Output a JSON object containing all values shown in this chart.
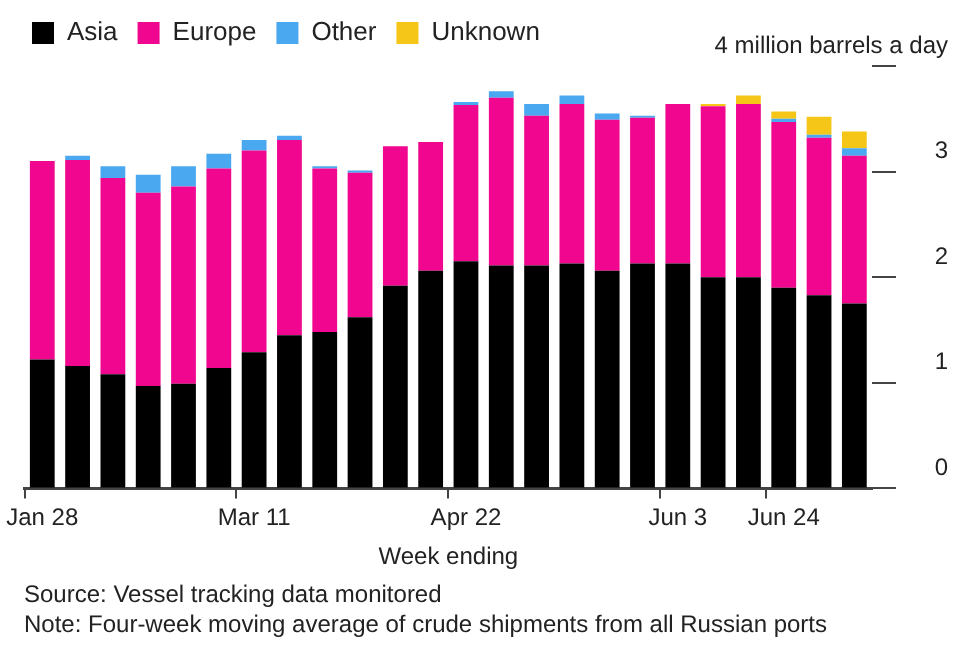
{
  "chart_data": {
    "type": "bar",
    "stacked": true,
    "xlabel": "Week ending",
    "legend": "top left",
    "grid": false,
    "categories": [
      "Jan 28",
      null,
      null,
      null,
      null,
      null,
      "Mar 11",
      null,
      null,
      null,
      null,
      null,
      "Apr 22",
      null,
      null,
      null,
      null,
      null,
      "Jun 3",
      null,
      null,
      "Jun 24",
      null,
      null
    ],
    "ylim": [
      0,
      4
    ],
    "yticks": [
      0,
      1,
      2,
      3,
      {
        "value": 4,
        "label": "4 million barrels a day"
      }
    ],
    "series": [
      {
        "name": "Asia",
        "color": "#000000",
        "values": [
          1.22,
          1.16,
          1.08,
          0.97,
          0.99,
          1.14,
          1.29,
          1.45,
          1.48,
          1.62,
          1.92,
          2.06,
          2.15,
          2.11,
          2.11,
          2.13,
          2.06,
          2.13,
          2.13,
          2.0,
          2.0,
          1.9,
          1.83,
          1.75
        ]
      },
      {
        "name": "Europe",
        "color": "#f0068f",
        "values": [
          1.88,
          1.95,
          1.86,
          1.83,
          1.87,
          1.89,
          1.91,
          1.85,
          1.55,
          1.37,
          1.32,
          1.22,
          1.48,
          1.59,
          1.42,
          1.51,
          1.43,
          1.38,
          1.51,
          1.62,
          1.64,
          1.57,
          1.49,
          1.4
        ]
      },
      {
        "name": "Other",
        "color": "#4aa8f0",
        "values": [
          0,
          0.04,
          0.11,
          0.17,
          0.19,
          0.14,
          0.1,
          0.04,
          0.02,
          0.02,
          0,
          0,
          0.03,
          0.06,
          0.11,
          0.08,
          0.06,
          0.02,
          0,
          0,
          0,
          0.03,
          0.03,
          0.07
        ]
      },
      {
        "name": "Unknown",
        "color": "#f5c518",
        "values": [
          0,
          0,
          0,
          0,
          0,
          0,
          0,
          0,
          0,
          0,
          0,
          0,
          0,
          0,
          0,
          0,
          0,
          0,
          0,
          0.02,
          0.08,
          0.07,
          0.17,
          0.16
        ]
      }
    ],
    "annotations": [
      "Source: Vessel tracking data monitored",
      "Note: Four-week moving average of crude shipments from all Russian ports"
    ]
  }
}
